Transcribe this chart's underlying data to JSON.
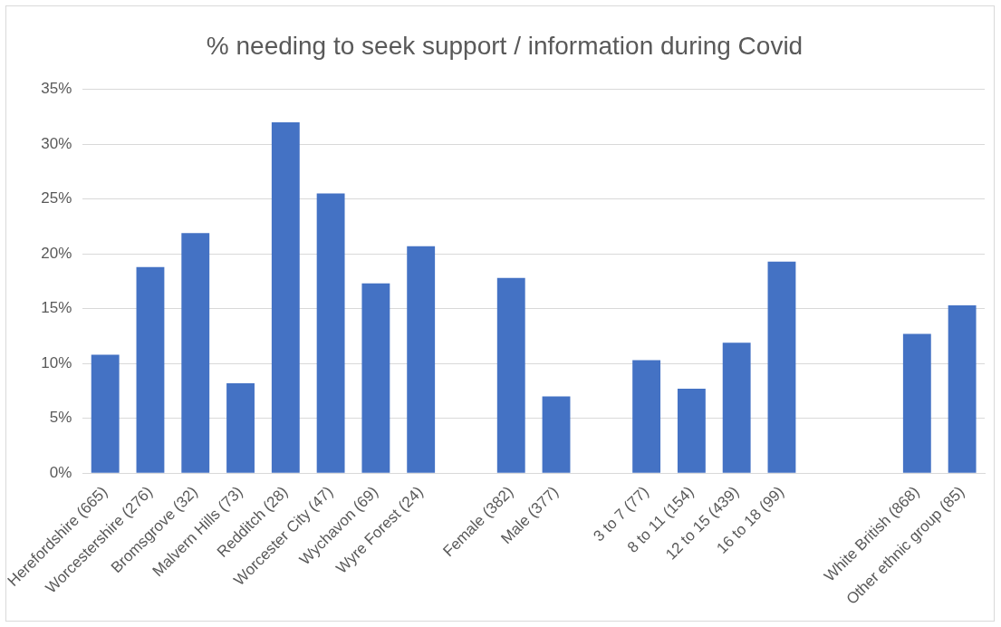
{
  "chart_data": {
    "type": "bar",
    "title": "% needing to seek support / information during Covid",
    "categories": [
      "Herefordshire (665)",
      "Worcestershire (276)",
      "Bromsgrove (32)",
      "Malvern Hills (73)",
      "Redditch (28)",
      "Worcester City (47)",
      "Wychavon (69)",
      "Wyre Forest (24)",
      null,
      "Female (382)",
      "Male (377)",
      null,
      "3 to 7 (77)",
      "8 to 11 (154)",
      "12 to 15 (439)",
      "16 to 18 (99)",
      null,
      null,
      "White British (868)",
      "Other ethnic group (85)"
    ],
    "values": [
      10.8,
      18.8,
      21.9,
      8.2,
      32.0,
      25.5,
      17.3,
      20.7,
      null,
      17.8,
      7.0,
      null,
      10.3,
      7.7,
      11.9,
      19.3,
      null,
      null,
      12.7,
      15.3
    ],
    "color": "#4472c4",
    "ylim": [
      0,
      35
    ],
    "yticks": [
      {
        "value": 0,
        "label": "0%"
      },
      {
        "value": 5,
        "label": "5%"
      },
      {
        "value": 10,
        "label": "10%"
      },
      {
        "value": 15,
        "label": "15%"
      },
      {
        "value": 20,
        "label": "20%"
      },
      {
        "value": 25,
        "label": "25%"
      },
      {
        "value": 30,
        "label": "30%"
      },
      {
        "value": 35,
        "label": "35%"
      }
    ],
    "grid": "y",
    "legend": false
  }
}
